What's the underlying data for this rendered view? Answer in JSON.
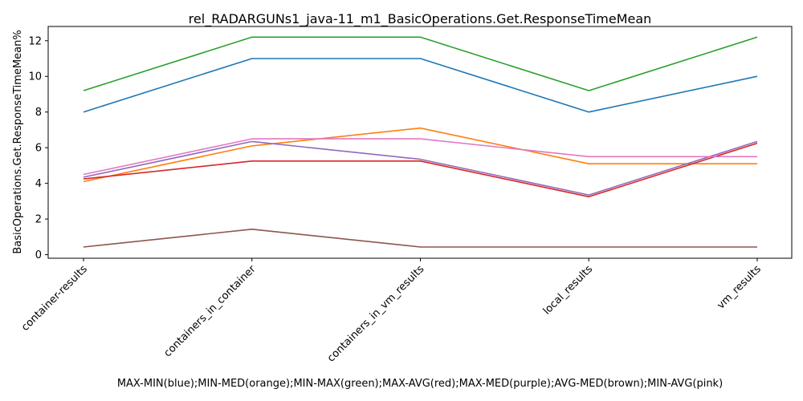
{
  "chart_data": {
    "type": "line",
    "title": "rel_RADARGUNs1_java-11_m1_BasicOperations.Get.ResponseTimeMean",
    "xlabel": "MAX-MIN(blue);MIN-MED(orange);MIN-MAX(green);MAX-AVG(red);MAX-MED(purple);AVG-MED(brown);MIN-AVG(pink)",
    "ylabel": "BasicOperations.Get.ResponseTimeMean%",
    "categories": [
      "container-results",
      "containers_in_container",
      "containers_in_vm_results",
      "local_results",
      "vm_results"
    ],
    "ylim": [
      -0.2,
      12.8
    ],
    "yticks": [
      "0",
      "2",
      "4",
      "6",
      "8",
      "10",
      "12"
    ],
    "grid": false,
    "series": [
      {
        "color": "#1f77b4",
        "values": [
          8.0,
          11.0,
          11.0,
          8.0,
          10.0
        ]
      },
      {
        "color": "#ff7f0e",
        "values": [
          4.1,
          6.1,
          7.1,
          5.1,
          5.1
        ]
      },
      {
        "color": "#2ca02c",
        "values": [
          9.2,
          12.2,
          12.2,
          9.2,
          12.2
        ]
      },
      {
        "color": "#d62728",
        "values": [
          4.25,
          5.25,
          5.25,
          3.25,
          6.25
        ]
      },
      {
        "color": "#9467bd",
        "values": [
          4.35,
          6.35,
          5.35,
          3.35,
          6.35
        ]
      },
      {
        "color": "#8c564b",
        "values": [
          0.43,
          1.43,
          0.43,
          0.43,
          0.43
        ]
      },
      {
        "color": "#e377c2",
        "values": [
          4.5,
          6.5,
          6.5,
          5.5,
          5.5
        ]
      }
    ]
  }
}
